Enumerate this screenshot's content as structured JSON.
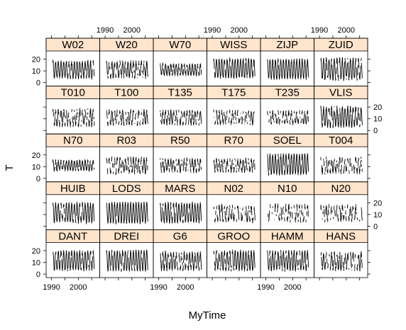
{
  "chart_data": {
    "type": "line",
    "title": "",
    "xlabel": "MyTime",
    "ylabel": "T",
    "layout": {
      "columns": 6,
      "rows": 5
    },
    "xlim": [
      1988,
      2008
    ],
    "ylim": [
      -3,
      27
    ],
    "x_ticks": [
      1990,
      2000
    ],
    "y_ticks": [
      0,
      10,
      20
    ],
    "strip_color": "#ffe5cc",
    "line_color": "#000000",
    "panels": [
      {
        "name": "W02",
        "mean": 11,
        "amp": 7,
        "noise": 1.4,
        "gap": 0.05
      },
      {
        "name": "W20",
        "mean": 11,
        "amp": 6.5,
        "noise": 1.6,
        "gap": 0.12
      },
      {
        "name": "W70",
        "mean": 11,
        "amp": 4.5,
        "noise": 1.2,
        "gap": 0.08
      },
      {
        "name": "WISS",
        "mean": 12,
        "amp": 8,
        "noise": 1.0,
        "gap": 0.02
      },
      {
        "name": "ZIJP",
        "mean": 11.5,
        "amp": 8,
        "noise": 1.2,
        "gap": 0.03
      },
      {
        "name": "ZUID",
        "mean": 11.5,
        "amp": 8.5,
        "noise": 1.6,
        "gap": 0.05
      },
      {
        "name": "T010",
        "mean": 11,
        "amp": 6.5,
        "noise": 1.8,
        "gap": 0.22
      },
      {
        "name": "T100",
        "mean": 11,
        "amp": 6,
        "noise": 1.5,
        "gap": 0.2
      },
      {
        "name": "T135",
        "mean": 11,
        "amp": 5.5,
        "noise": 1.5,
        "gap": 0.2
      },
      {
        "name": "T175",
        "mean": 11,
        "amp": 5.5,
        "noise": 1.5,
        "gap": 0.25
      },
      {
        "name": "T235",
        "mean": 11,
        "amp": 5,
        "noise": 1.5,
        "gap": 0.25
      },
      {
        "name": "VLIS",
        "mean": 11.5,
        "amp": 8,
        "noise": 1.8,
        "gap": 0.06
      },
      {
        "name": "N70",
        "mean": 11,
        "amp": 4,
        "noise": 1.3,
        "gap": 0.05
      },
      {
        "name": "R03",
        "mean": 11,
        "amp": 6,
        "noise": 2.0,
        "gap": 0.2
      },
      {
        "name": "R50",
        "mean": 11,
        "amp": 5,
        "noise": 1.5,
        "gap": 0.2
      },
      {
        "name": "R70",
        "mean": 11,
        "amp": 5,
        "noise": 1.5,
        "gap": 0.2
      },
      {
        "name": "SOEL",
        "mean": 12,
        "amp": 8.5,
        "noise": 1.0,
        "gap": 0.02
      },
      {
        "name": "T004",
        "mean": 11,
        "amp": 6,
        "noise": 2.0,
        "gap": 0.3
      },
      {
        "name": "HUIB",
        "mean": 11.5,
        "amp": 8,
        "noise": 1.3,
        "gap": 0.05
      },
      {
        "name": "LODS",
        "mean": 11.5,
        "amp": 8.5,
        "noise": 1.1,
        "gap": 0.02
      },
      {
        "name": "MARS",
        "mean": 11.5,
        "amp": 8,
        "noise": 1.3,
        "gap": 0.05
      },
      {
        "name": "N02",
        "mean": 11,
        "amp": 6.5,
        "noise": 2.2,
        "gap": 0.3
      },
      {
        "name": "N10",
        "mean": 11,
        "amp": 6.5,
        "noise": 2.2,
        "gap": 0.35
      },
      {
        "name": "N20",
        "mean": 11,
        "amp": 6,
        "noise": 2.0,
        "gap": 0.3
      },
      {
        "name": "DANT",
        "mean": 11.5,
        "amp": 8,
        "noise": 1.2,
        "gap": 0.04
      },
      {
        "name": "DREI",
        "mean": 11.5,
        "amp": 8.5,
        "noise": 1.1,
        "gap": 0.03
      },
      {
        "name": "G6",
        "mean": 11,
        "amp": 7,
        "noise": 1.6,
        "gap": 0.12
      },
      {
        "name": "GROO",
        "mean": 11.5,
        "amp": 8,
        "noise": 1.3,
        "gap": 0.05
      },
      {
        "name": "HAMM",
        "mean": 11.5,
        "amp": 8,
        "noise": 1.3,
        "gap": 0.04
      },
      {
        "name": "HANS",
        "mean": 11,
        "amp": 7,
        "noise": 1.8,
        "gap": 0.22
      }
    ]
  }
}
